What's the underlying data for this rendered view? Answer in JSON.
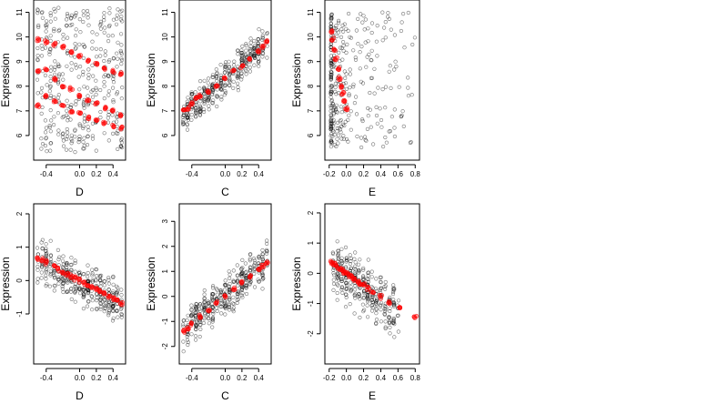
{
  "chart_data": [
    {
      "type": "scatter",
      "panel": "top-left",
      "xlabel": "D",
      "ylabel": "Expression",
      "xlim": [
        -0.55,
        0.55
      ],
      "ylim": [
        5.0,
        11.5
      ],
      "xticks": [
        -0.4,
        0.0,
        0.2,
        0.4
      ],
      "xtick_labels": [
        "-0.4",
        "0.0",
        "0.2",
        "0.4"
      ],
      "yticks": [
        6,
        7,
        8,
        9,
        10,
        11
      ],
      "ytick_labels": [
        "6",
        "7",
        "8",
        "9",
        "10",
        "11"
      ],
      "cloud": {
        "x_columns": [
          -0.5,
          -0.45,
          -0.4,
          -0.35,
          -0.3,
          -0.25,
          -0.2,
          -0.15,
          -0.1,
          -0.05,
          0.0,
          0.05,
          0.1,
          0.15,
          0.2,
          0.25,
          0.3,
          0.35,
          0.4,
          0.45,
          0.5
        ],
        "y_range": [
          5.3,
          11.2
        ],
        "n_points": 360,
        "color": "#000000"
      },
      "fitted": {
        "x": [
          -0.5,
          -0.4,
          -0.3,
          -0.2,
          -0.1,
          0.0,
          0.1,
          0.2,
          0.3,
          0.4,
          0.5
        ],
        "levels": [
          [
            7.2,
            8.6,
            9.9
          ],
          [
            7.6,
            8.7,
            9.8
          ],
          [
            7.4,
            8.3,
            9.7
          ],
          [
            7.2,
            8.0,
            9.6
          ],
          [
            7.0,
            7.9,
            9.4
          ],
          [
            6.9,
            7.6,
            9.2
          ],
          [
            6.7,
            7.4,
            9.0
          ],
          [
            6.6,
            7.3,
            8.9
          ],
          [
            6.5,
            7.1,
            8.7
          ],
          [
            6.4,
            7.0,
            8.6
          ],
          [
            6.3,
            6.8,
            8.5
          ]
        ],
        "color": "#ff0000"
      }
    },
    {
      "type": "scatter",
      "panel": "top-middle",
      "xlabel": "C",
      "ylabel": "Expression",
      "xlim": [
        -0.55,
        0.55
      ],
      "ylim": [
        5.0,
        11.5
      ],
      "xticks": [
        -0.4,
        0.0,
        0.2,
        0.4
      ],
      "xtick_labels": [
        "-0.4",
        "0.0",
        "0.2",
        "0.4"
      ],
      "yticks": [
        6,
        7,
        8,
        9,
        10,
        11
      ],
      "ytick_labels": [
        "6",
        "7",
        "8",
        "9",
        "10",
        "11"
      ],
      "cloud": {
        "trend": [
          [
            -0.5,
            6.8
          ],
          [
            0.5,
            9.8
          ]
        ],
        "spread": 1.0,
        "n_points": 360,
        "color": "#000000"
      },
      "fitted": {
        "x": [
          -0.5,
          -0.45,
          -0.4,
          -0.35,
          -0.3,
          -0.2,
          -0.1,
          0.0,
          0.1,
          0.2,
          0.3,
          0.4,
          0.45,
          0.5
        ],
        "y": [
          7.0,
          7.1,
          7.3,
          7.5,
          7.6,
          7.8,
          8.0,
          8.3,
          8.6,
          8.8,
          9.1,
          9.4,
          9.6,
          9.8
        ],
        "color": "#ff0000"
      }
    },
    {
      "type": "scatter",
      "panel": "top-right",
      "xlabel": "E",
      "ylabel": "Expression",
      "xlim": [
        -0.25,
        0.85
      ],
      "ylim": [
        5.0,
        11.5
      ],
      "xticks": [
        -0.2,
        0.0,
        0.2,
        0.4,
        0.6,
        0.8
      ],
      "xtick_labels": [
        "-0.2",
        "0.0",
        "0.2",
        "0.4",
        "0.6",
        "0.8"
      ],
      "yticks": [
        6,
        7,
        8,
        9,
        10,
        11
      ],
      "ytick_labels": [
        "6",
        "7",
        "8",
        "9",
        "10",
        "11"
      ],
      "cloud": {
        "x_range": [
          -0.2,
          0.8
        ],
        "y_range": [
          5.5,
          11.0
        ],
        "n_points": 320,
        "color": "#000000"
      },
      "fitted": {
        "x": [
          -0.18,
          -0.16,
          -0.14,
          -0.12,
          -0.1,
          -0.08,
          -0.06,
          -0.04,
          -0.02,
          0.0
        ],
        "y": [
          10.2,
          9.9,
          9.5,
          9.1,
          8.7,
          8.3,
          8.0,
          7.7,
          7.4,
          7.1
        ],
        "color": "#ff0000"
      }
    },
    {
      "type": "scatter",
      "panel": "bottom-left",
      "xlabel": "D",
      "ylabel": "Expression",
      "xlim": [
        -0.55,
        0.55
      ],
      "ylim": [
        -2.5,
        2.3
      ],
      "xticks": [
        -0.4,
        0.0,
        0.2,
        0.4
      ],
      "xtick_labels": [
        "-0.4",
        "0.0",
        "0.2",
        "0.4"
      ],
      "yticks": [
        -1,
        0,
        1,
        2
      ],
      "ytick_labels": [
        "-1",
        "0",
        "1",
        "2"
      ],
      "cloud": {
        "trend": [
          [
            -0.5,
            0.6
          ],
          [
            0.5,
            -0.7
          ]
        ],
        "spread": 1.0,
        "n_points": 340,
        "color": "#000000"
      },
      "fitted": {
        "x": [
          -0.5,
          -0.45,
          -0.4,
          -0.3,
          -0.25,
          -0.2,
          -0.15,
          -0.1,
          -0.05,
          0.0,
          0.05,
          0.1,
          0.15,
          0.2,
          0.25,
          0.3,
          0.35,
          0.4,
          0.45,
          0.5
        ],
        "y": [
          0.68,
          0.62,
          0.55,
          0.4,
          0.33,
          0.26,
          0.2,
          0.13,
          0.07,
          0.0,
          -0.07,
          -0.13,
          -0.2,
          -0.27,
          -0.33,
          -0.4,
          -0.47,
          -0.53,
          -0.6,
          -0.67
        ],
        "color": "#ff0000"
      }
    },
    {
      "type": "scatter",
      "panel": "bottom-middle",
      "xlabel": "C",
      "ylabel": "Expression",
      "xlim": [
        -0.55,
        0.55
      ],
      "ylim": [
        -2.7,
        3.7
      ],
      "xticks": [
        -0.4,
        0.0,
        0.2,
        0.4
      ],
      "xtick_labels": [
        "-0.4",
        "0.0",
        "0.2",
        "0.4"
      ],
      "yticks": [
        -2,
        -1,
        0,
        1,
        2,
        3
      ],
      "ytick_labels": [
        "-2",
        "-1",
        "0",
        "1",
        "2",
        "3"
      ],
      "cloud": {
        "trend": [
          [
            -0.5,
            -1.3
          ],
          [
            0.5,
            1.4
          ]
        ],
        "spread": 1.1,
        "n_points": 360,
        "color": "#000000"
      },
      "fitted": {
        "x": [
          -0.5,
          -0.45,
          -0.4,
          -0.3,
          -0.2,
          -0.1,
          0.0,
          0.1,
          0.2,
          0.3,
          0.4,
          0.45,
          0.5
        ],
        "y": [
          -1.4,
          -1.3,
          -1.1,
          -0.8,
          -0.55,
          -0.25,
          0.0,
          0.3,
          0.55,
          0.8,
          1.05,
          1.2,
          1.35
        ],
        "color": "#ff0000"
      }
    },
    {
      "type": "scatter",
      "panel": "bottom-right",
      "xlabel": "E",
      "ylabel": "Expression",
      "xlim": [
        -0.25,
        0.85
      ],
      "ylim": [
        -3.0,
        2.3
      ],
      "xticks": [
        -0.2,
        0.0,
        0.2,
        0.4,
        0.6,
        0.8
      ],
      "xtick_labels": [
        "-0.2",
        "0.0",
        "0.2",
        "0.4",
        "0.6",
        "0.8"
      ],
      "yticks": [
        -2,
        -1,
        0,
        1,
        2
      ],
      "ytick_labels": [
        "-2",
        "-1",
        "0",
        "1",
        "2"
      ],
      "cloud": {
        "trend": [
          [
            -0.15,
            0.2
          ],
          [
            0.6,
            -1.3
          ]
        ],
        "spread": 1.2,
        "n_points": 320,
        "color": "#000000"
      },
      "fitted": {
        "x": [
          -0.17,
          -0.14,
          -0.11,
          -0.08,
          -0.05,
          -0.02,
          0.01,
          0.04,
          0.07,
          0.1,
          0.13,
          0.16,
          0.2,
          0.25,
          0.3,
          0.4,
          0.5,
          0.62,
          0.8
        ],
        "y": [
          0.35,
          0.28,
          0.22,
          0.16,
          0.1,
          0.04,
          -0.02,
          -0.08,
          -0.14,
          -0.2,
          -0.27,
          -0.33,
          -0.4,
          -0.5,
          -0.6,
          -0.78,
          -0.96,
          -1.15,
          -1.45
        ],
        "color": "#ff0000"
      }
    }
  ]
}
